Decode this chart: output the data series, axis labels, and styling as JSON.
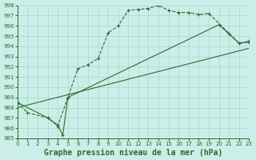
{
  "background_color": "#cceee8",
  "grid_color": "#99ddcc",
  "line_color": "#2d6b2d",
  "title": "Graphe pression niveau de la mer (hPa)",
  "xlim": [
    0,
    23
  ],
  "ylim": [
    985,
    998
  ],
  "xticks": [
    0,
    1,
    2,
    3,
    4,
    5,
    6,
    7,
    8,
    9,
    10,
    11,
    12,
    13,
    14,
    15,
    16,
    17,
    18,
    19,
    20,
    21,
    22,
    23
  ],
  "yticks": [
    985,
    986,
    987,
    988,
    989,
    990,
    991,
    992,
    993,
    994,
    995,
    996,
    997,
    998
  ],
  "line1_x": [
    0,
    1,
    3,
    4,
    5,
    6,
    7,
    8,
    9,
    10,
    11,
    12,
    13,
    14,
    15,
    16,
    17,
    18,
    19,
    22,
    23
  ],
  "line1_y": [
    988.5,
    987.5,
    987.0,
    986.2,
    989.0,
    991.8,
    992.2,
    992.8,
    995.3,
    996.0,
    997.5,
    997.6,
    997.7,
    998.0,
    997.5,
    997.3,
    997.3,
    997.1,
    997.2,
    994.3,
    994.5
  ],
  "line2_x": [
    0,
    3,
    4,
    4.5,
    5,
    20,
    21,
    22,
    23
  ],
  "line2_y": [
    988.5,
    987.0,
    986.3,
    985.3,
    989.0,
    996.1,
    995.2,
    994.3,
    994.4
  ],
  "line3_x": [
    0,
    23
  ],
  "line3_y": [
    988.0,
    993.8
  ],
  "title_fontsize": 7,
  "tick_fontsize": 5
}
